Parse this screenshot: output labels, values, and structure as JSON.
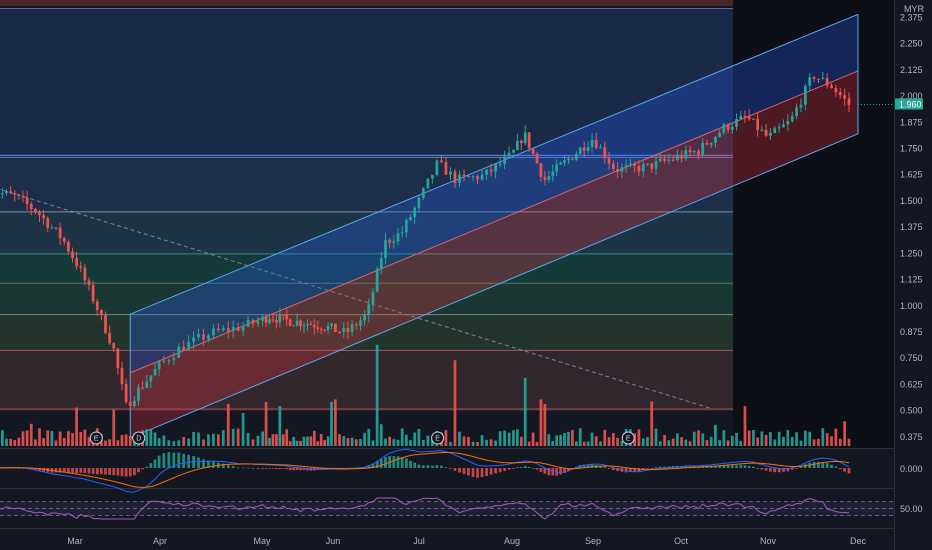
{
  "chart_data": [
    {
      "type": "candlestick",
      "title": "",
      "currency": "MYR",
      "current_price": "1.960",
      "x_tick_labels": [
        "Mar",
        "Apr",
        "May",
        "Jun",
        "Jul",
        "Aug",
        "Sep",
        "Oct",
        "Nov",
        "Dec"
      ],
      "y_tick_labels": [
        "2.375",
        "2.250",
        "2.125",
        "2.000",
        "1.875",
        "1.750",
        "1.625",
        "1.500",
        "1.375",
        "1.250",
        "1.125",
        "1.000",
        "0.875",
        "0.750",
        "0.625",
        "0.500",
        "0.375"
      ],
      "ylim": [
        0.36,
        2.42
      ],
      "fib_levels": [
        2.42,
        1.71,
        1.45,
        1.25,
        1.11,
        0.96,
        0.79,
        0.51
      ],
      "regression_channel": {
        "start_month": 1.65,
        "end_month": 10.0,
        "upper": [
          0.96,
          2.39
        ],
        "mid": [
          0.68,
          2.12
        ],
        "lower": [
          0.37,
          1.82
        ]
      },
      "trend_line": {
        "from": [
          0,
          1.57
        ],
        "to": [
          8.35,
          0.51
        ]
      },
      "event_markers": [
        {
          "label": "E",
          "month": 1.25
        },
        {
          "label": "D",
          "month": 1.75
        },
        {
          "label": "E",
          "month": 5.2
        },
        {
          "label": "E",
          "month": 7.4
        }
      ],
      "anchors": [
        [
          0.0,
          1.55
        ],
        [
          0.3,
          1.52
        ],
        [
          0.55,
          1.45
        ],
        [
          0.85,
          1.32
        ],
        [
          1.05,
          1.18
        ],
        [
          1.25,
          1.0
        ],
        [
          1.45,
          0.8
        ],
        [
          1.6,
          0.52
        ],
        [
          1.75,
          0.6
        ],
        [
          2.0,
          0.72
        ],
        [
          2.2,
          0.8
        ],
        [
          2.5,
          0.87
        ],
        [
          2.8,
          0.9
        ],
        [
          3.1,
          0.95
        ],
        [
          3.35,
          0.93
        ],
        [
          3.6,
          0.92
        ],
        [
          3.9,
          0.9
        ],
        [
          4.15,
          0.87
        ],
        [
          4.4,
          0.96
        ],
        [
          4.6,
          1.3
        ],
        [
          4.8,
          1.35
        ],
        [
          5.0,
          1.5
        ],
        [
          5.2,
          1.68
        ],
        [
          5.4,
          1.6
        ],
        [
          5.7,
          1.62
        ],
        [
          6.0,
          1.72
        ],
        [
          6.15,
          1.82
        ],
        [
          6.4,
          1.6
        ],
        [
          6.7,
          1.7
        ],
        [
          7.0,
          1.8
        ],
        [
          7.25,
          1.65
        ],
        [
          7.6,
          1.66
        ],
        [
          7.9,
          1.7
        ],
        [
          8.2,
          1.74
        ],
        [
          8.5,
          1.85
        ],
        [
          8.75,
          1.9
        ],
        [
          9.0,
          1.8
        ],
        [
          9.25,
          1.88
        ],
        [
          9.5,
          2.1
        ],
        [
          9.7,
          2.05
        ],
        [
          9.9,
          1.96
        ]
      ]
    },
    {
      "type": "bar",
      "title": "",
      "name": "volume",
      "spikes": [
        {
          "month": 4.5,
          "rel": 0.92
        },
        {
          "month": 4.55,
          "rel": 0.92
        },
        {
          "month": 5.4,
          "rel": 0.78
        },
        {
          "month": 4.0,
          "rel": 0.4
        },
        {
          "month": 6.15,
          "rel": 0.62
        },
        {
          "month": 3.05,
          "rel": 0.4
        },
        {
          "month": 2.8,
          "rel": 0.3
        },
        {
          "month": 4.5,
          "rel": 0.3
        }
      ]
    },
    {
      "type": "line",
      "title": "",
      "name": "macd",
      "ylabel_tick": "0.000"
    },
    {
      "type": "line",
      "title": "",
      "name": "rsi",
      "ylabel_tick": "50.00",
      "upper": 70,
      "lower": 30
    }
  ],
  "colors": {
    "background": "#131722",
    "up": "#26a69a",
    "down": "#ef5350",
    "channel_upper": "#2962ff",
    "channel_lower": "#f23645",
    "channel_line": "#5aa8f0",
    "rsi": "#a35bbd",
    "macd": "#2962ff",
    "signal": "#ff6d00"
  }
}
